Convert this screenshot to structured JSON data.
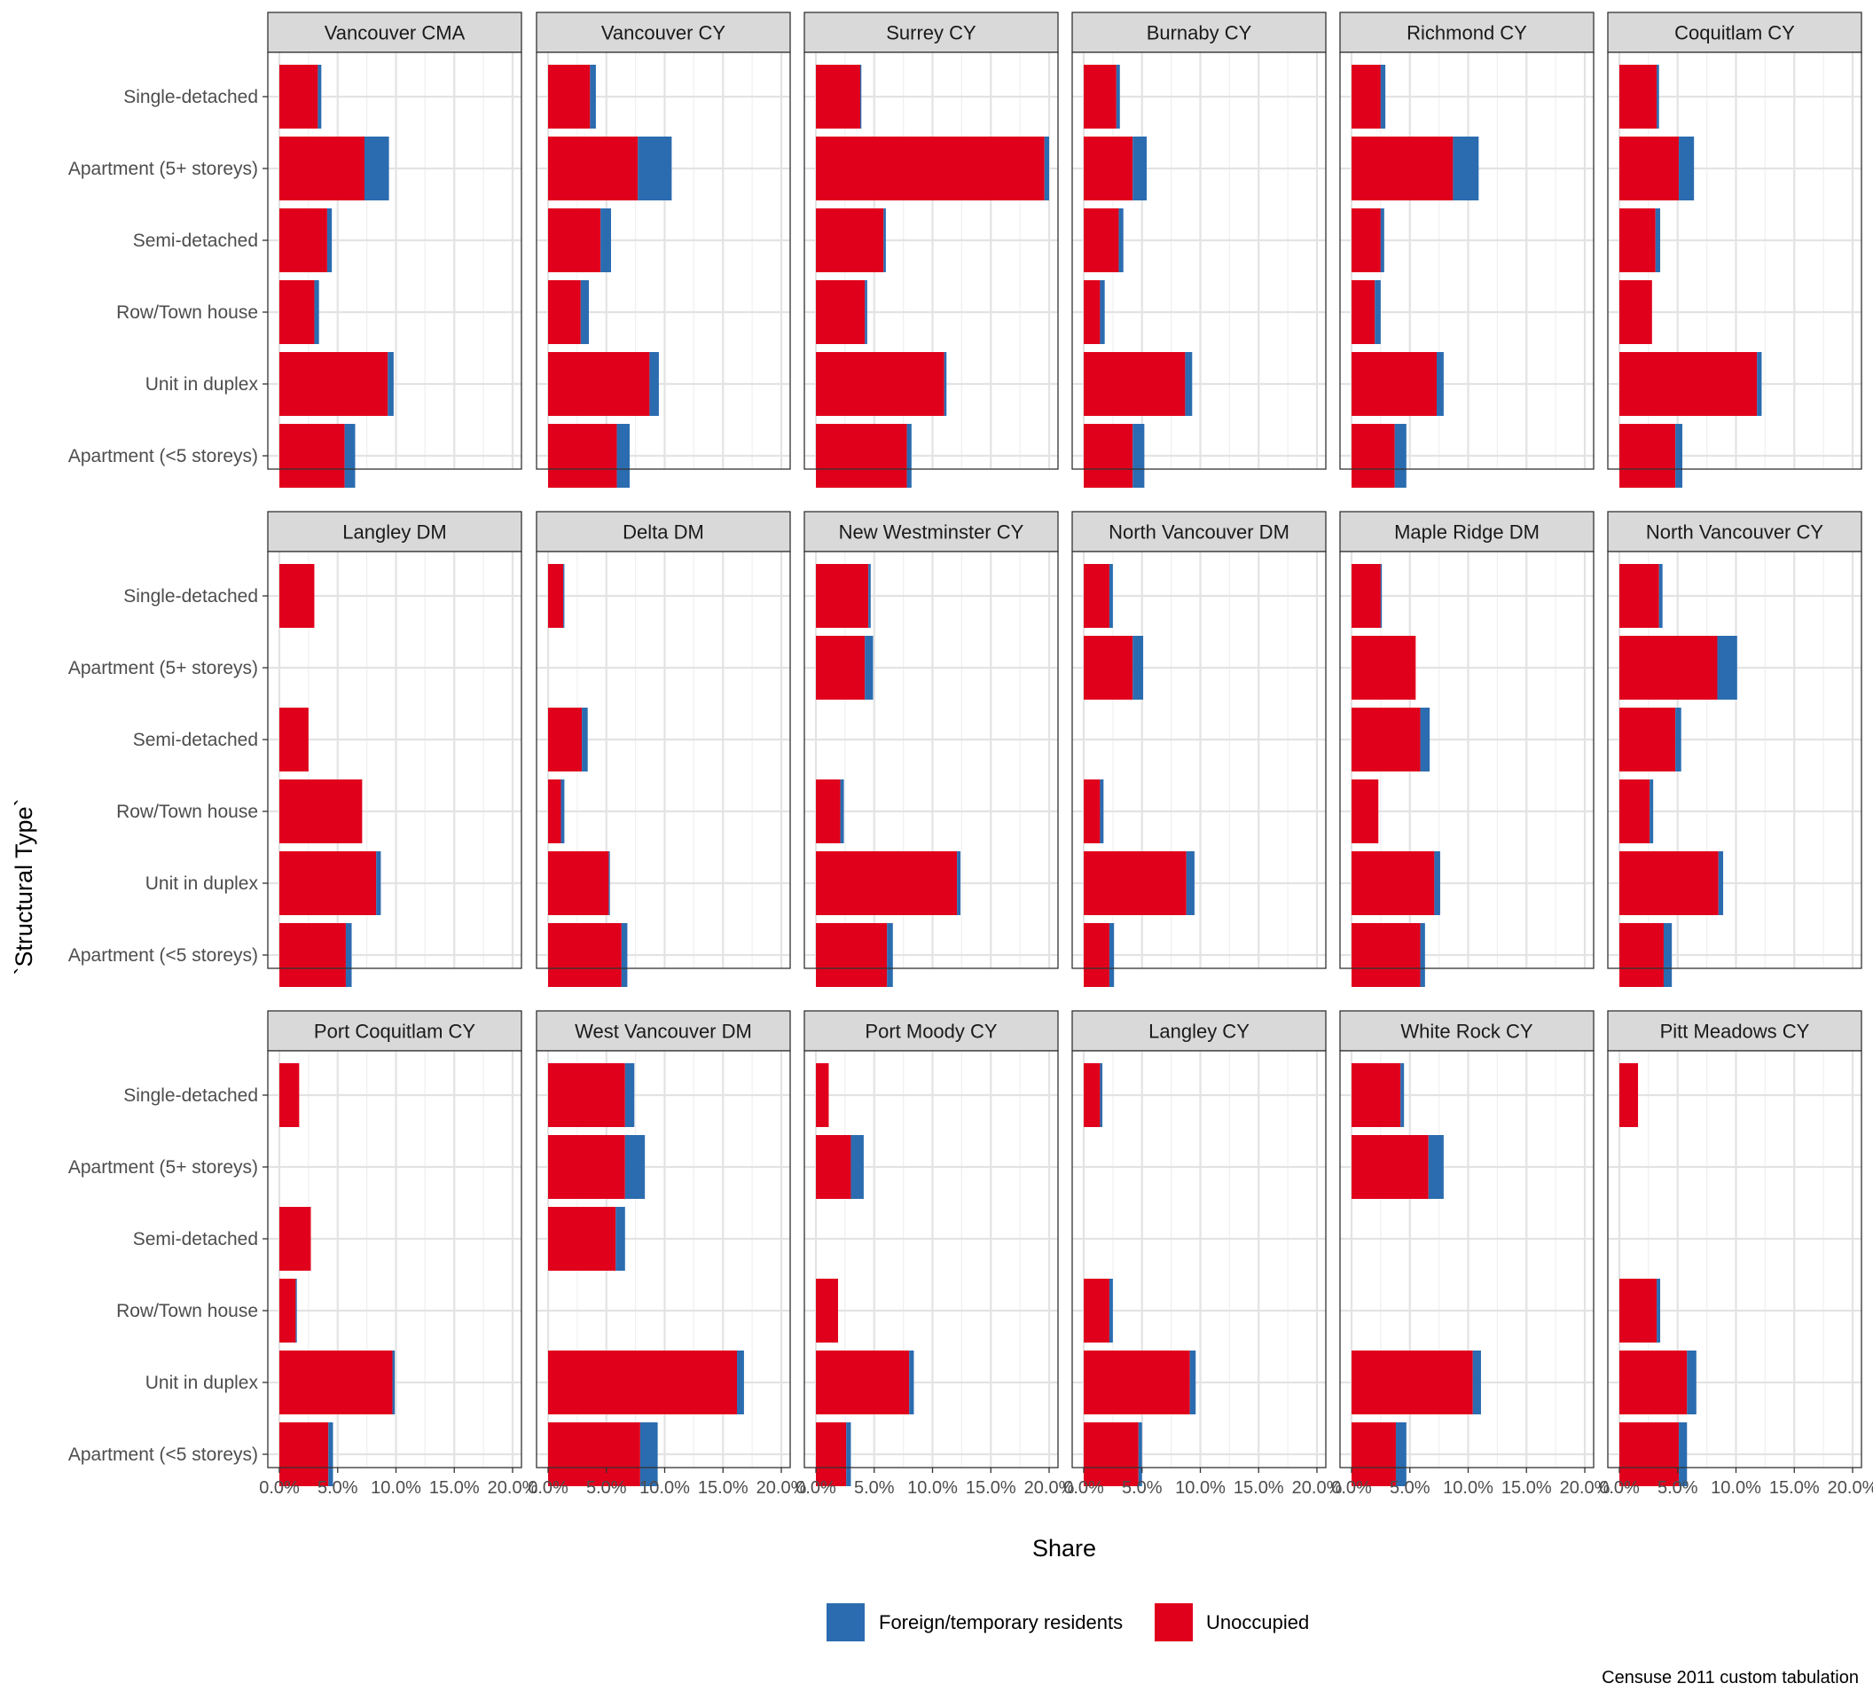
{
  "chart_data": {
    "type": "bar",
    "orientation": "horizontal",
    "stacked": true,
    "xlabel": "Share",
    "ylabel": "`Structural Type`",
    "xlim": [
      0,
      0.2
    ],
    "x_ticks": [
      0,
      0.05,
      0.1,
      0.15,
      0.2
    ],
    "x_tick_labels": [
      "0.0%",
      "5.0%",
      "10.0%",
      "15.0%",
      "20.0%"
    ],
    "grid": true,
    "legend_position": "bottom",
    "caption": "Censuse 2011 custom tabulation",
    "categories": [
      "Single-detached",
      "Apartment (5+ storeys)",
      "Semi-detached",
      "Row/Town house",
      "Unit in duplex",
      "Apartment (<5 storeys)"
    ],
    "series": [
      {
        "name": "Unoccupied",
        "color": "#E0001B"
      },
      {
        "name": "Foreign/temporary residents",
        "color": "#2B6CB0"
      }
    ],
    "legend_order": [
      "Foreign/temporary residents",
      "Unoccupied"
    ],
    "panels": [
      {
        "name": "Vancouver CMA",
        "unoccupied": [
          0.033,
          0.073,
          0.041,
          0.03,
          0.093,
          0.056
        ],
        "foreign": [
          0.003,
          0.021,
          0.004,
          0.004,
          0.005,
          0.009
        ]
      },
      {
        "name": "Vancouver CY",
        "unoccupied": [
          0.036,
          0.077,
          0.045,
          0.028,
          0.087,
          0.059
        ],
        "foreign": [
          0.005,
          0.029,
          0.009,
          0.007,
          0.008,
          0.011
        ]
      },
      {
        "name": "Surrey CY",
        "unoccupied": [
          0.038,
          0.196,
          0.058,
          0.042,
          0.11,
          0.078
        ],
        "foreign": [
          0.001,
          0.004,
          0.002,
          0.002,
          0.002,
          0.004
        ]
      },
      {
        "name": "Burnaby CY",
        "unoccupied": [
          0.028,
          0.042,
          0.03,
          0.014,
          0.087,
          0.042
        ],
        "foreign": [
          0.003,
          0.012,
          0.004,
          0.004,
          0.006,
          0.01
        ]
      },
      {
        "name": "Richmond CY",
        "unoccupied": [
          0.025,
          0.087,
          0.025,
          0.02,
          0.073,
          0.037
        ],
        "foreign": [
          0.004,
          0.022,
          0.003,
          0.005,
          0.006,
          0.01
        ]
      },
      {
        "name": "Coquitlam CY",
        "unoccupied": [
          0.032,
          0.051,
          0.031,
          0.028,
          0.118,
          0.048
        ],
        "foreign": [
          0.002,
          0.013,
          0.004,
          0.0,
          0.004,
          0.006
        ]
      },
      {
        "name": "Langley DM",
        "unoccupied": [
          0.03,
          null,
          0.025,
          0.071,
          0.083,
          0.057
        ],
        "foreign": [
          0.0,
          null,
          0.0,
          0.0,
          0.004,
          0.005
        ]
      },
      {
        "name": "Delta DM",
        "unoccupied": [
          0.013,
          null,
          0.029,
          0.011,
          0.052,
          0.063
        ],
        "foreign": [
          0.001,
          null,
          0.005,
          0.003,
          0.001,
          0.005
        ]
      },
      {
        "name": "New Westminster CY",
        "unoccupied": [
          0.045,
          0.042,
          null,
          0.021,
          0.121,
          0.061
        ],
        "foreign": [
          0.002,
          0.007,
          null,
          0.003,
          0.003,
          0.005
        ]
      },
      {
        "name": "North Vancouver DM",
        "unoccupied": [
          0.022,
          0.042,
          null,
          0.014,
          0.088,
          0.022
        ],
        "foreign": [
          0.003,
          0.009,
          null,
          0.003,
          0.007,
          0.004
        ]
      },
      {
        "name": "Maple Ridge DM",
        "unoccupied": [
          0.025,
          0.055,
          0.059,
          0.023,
          0.071,
          0.059
        ],
        "foreign": [
          0.001,
          0.0,
          0.008,
          0.0,
          0.005,
          0.004
        ]
      },
      {
        "name": "North Vancouver CY",
        "unoccupied": [
          0.034,
          0.084,
          0.048,
          0.026,
          0.085,
          0.038
        ],
        "foreign": [
          0.003,
          0.017,
          0.005,
          0.003,
          0.004,
          0.007
        ]
      },
      {
        "name": "Port Coquitlam CY",
        "unoccupied": [
          0.017,
          null,
          0.027,
          0.014,
          0.097,
          0.042
        ],
        "foreign": [
          0.0,
          null,
          0.0,
          0.001,
          0.002,
          0.004
        ]
      },
      {
        "name": "West Vancouver DM",
        "unoccupied": [
          0.066,
          0.066,
          0.058,
          null,
          0.162,
          0.079
        ],
        "foreign": [
          0.008,
          0.017,
          0.008,
          null,
          0.006,
          0.015
        ]
      },
      {
        "name": "Port Moody CY",
        "unoccupied": [
          0.011,
          0.03,
          null,
          0.019,
          0.08,
          0.026
        ],
        "foreign": [
          0.0,
          0.011,
          null,
          0.0,
          0.004,
          0.004
        ]
      },
      {
        "name": "Langley CY",
        "unoccupied": [
          0.014,
          null,
          null,
          0.022,
          0.091,
          0.047
        ],
        "foreign": [
          0.002,
          null,
          null,
          0.003,
          0.005,
          0.003
        ]
      },
      {
        "name": "White Rock CY",
        "unoccupied": [
          0.042,
          0.066,
          null,
          null,
          0.104,
          0.038
        ],
        "foreign": [
          0.003,
          0.013,
          null,
          null,
          0.007,
          0.009
        ]
      },
      {
        "name": "Pitt Meadows CY",
        "unoccupied": [
          0.016,
          null,
          null,
          0.032,
          0.058,
          0.051
        ],
        "foreign": [
          0.0,
          null,
          null,
          0.003,
          0.008,
          0.007
        ]
      }
    ]
  }
}
